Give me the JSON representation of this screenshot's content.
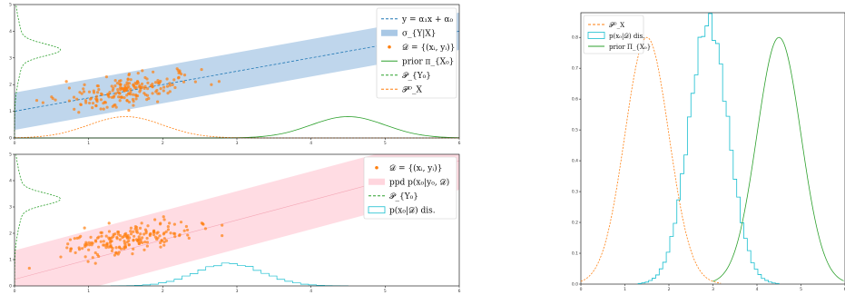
{
  "chart_data": [
    {
      "type": "scatter",
      "panel": "top-left",
      "xlim": [
        0,
        6
      ],
      "ylim": [
        0,
        5
      ],
      "xticks": [
        "0",
        "1",
        "2",
        "3",
        "4",
        "5",
        "6"
      ],
      "yticks": [
        "0",
        "1",
        "2",
        "3",
        "4",
        "5"
      ],
      "legend_position": "top-right",
      "legend": [
        {
          "label": "y = α₁x + α₀",
          "style": "dashed-line",
          "color": "#1f77b4"
        },
        {
          "label": "σ_{Y|X}",
          "style": "band",
          "color": "#a9c8e5"
        },
        {
          "label": "𝒟 = {(xᵢ, yᵢ)}",
          "style": "dot",
          "color": "#ff7f0e"
        },
        {
          "label": "prior π_{X₀}",
          "style": "line",
          "color": "#2ca02c"
        },
        {
          "label": "𝒫_{Y₀}",
          "style": "dashed-line",
          "color": "#2ca02c"
        },
        {
          "label": "𝒫ᴰ_X",
          "style": "dashed-line",
          "color": "#ff7f0e"
        }
      ],
      "regression_line": {
        "slope": 0.5,
        "intercept": 1.0
      },
      "band_halfwidth": 0.7,
      "prior_x0": {
        "mean": 4.5,
        "sd": 0.5,
        "peak": 0.8
      },
      "p_x_data": {
        "mean": 1.5,
        "sd": 0.5,
        "peak": 0.8
      },
      "p_y0": {
        "mean": 3.3,
        "sd": 0.22,
        "peak": 0.5
      },
      "scatter_summary": {
        "x_range": [
          0.3,
          2.8
        ],
        "y_range": [
          0.9,
          2.8
        ],
        "count": 200
      }
    },
    {
      "type": "scatter",
      "panel": "bottom-left",
      "xlim": [
        0,
        6
      ],
      "ylim": [
        0,
        5
      ],
      "xticks": [
        "0",
        "1",
        "2",
        "3",
        "4",
        "5",
        "6"
      ],
      "yticks": [
        "0",
        "1",
        "2",
        "3",
        "4",
        "5"
      ],
      "legend_position": "top-right",
      "legend": [
        {
          "label": "𝒟 = {(xᵢ, yᵢ)}",
          "style": "dot",
          "color": "#ff7f0e"
        },
        {
          "label": "ppd p(x₀|y₀, 𝒟)",
          "style": "band",
          "color": "#ffd6de"
        },
        {
          "label": "𝒫_{Y₀}",
          "style": "dashed-line",
          "color": "#2ca02c"
        },
        {
          "label": "p(x₀|𝒟) dis.",
          "style": "step-box",
          "color": "#17becf"
        }
      ],
      "inverse_line": {
        "slope": 0.75,
        "intercept": 0.25
      },
      "band_halfwidth": 1.1,
      "p_y0": {
        "mean": 3.3,
        "sd": 0.22,
        "peak": 0.5
      },
      "histogram_x0": {
        "mean": 2.9,
        "sd": 0.45,
        "peak": 0.85
      },
      "scatter_summary": {
        "x_range": [
          0.2,
          2.8
        ],
        "y_range": [
          1.0,
          3.2
        ],
        "count": 200
      }
    },
    {
      "type": "line",
      "panel": "right",
      "xlim": [
        0,
        6
      ],
      "ylim": [
        0,
        0.88
      ],
      "xticks": [
        "0",
        "1",
        "2",
        "3",
        "4",
        "5",
        "6"
      ],
      "yticks": [
        "0.0",
        "0.1",
        "0.2",
        "0.3",
        "0.4",
        "0.5",
        "0.6",
        "0.7",
        "0.8"
      ],
      "legend_position": "top-left",
      "legend": [
        {
          "label": "𝒫ᴰ_X",
          "style": "dashed-line",
          "color": "#ff7f0e"
        },
        {
          "label": "p(x₀|𝒟) dis.",
          "style": "step-box",
          "color": "#17becf"
        },
        {
          "label": "prior Π_{X₀}",
          "style": "line",
          "color": "#2ca02c"
        }
      ],
      "series": [
        {
          "name": "𝒫ᴰ_X",
          "kind": "gaussian",
          "mean": 1.5,
          "sd": 0.5,
          "peak": 0.8
        },
        {
          "name": "p(x₀|𝒟) dis.",
          "kind": "histogram",
          "mean": 2.9,
          "sd": 0.45,
          "peak": 0.85
        },
        {
          "name": "prior Π_{X₀}",
          "kind": "gaussian",
          "mean": 4.5,
          "sd": 0.5,
          "peak": 0.8
        }
      ]
    }
  ]
}
